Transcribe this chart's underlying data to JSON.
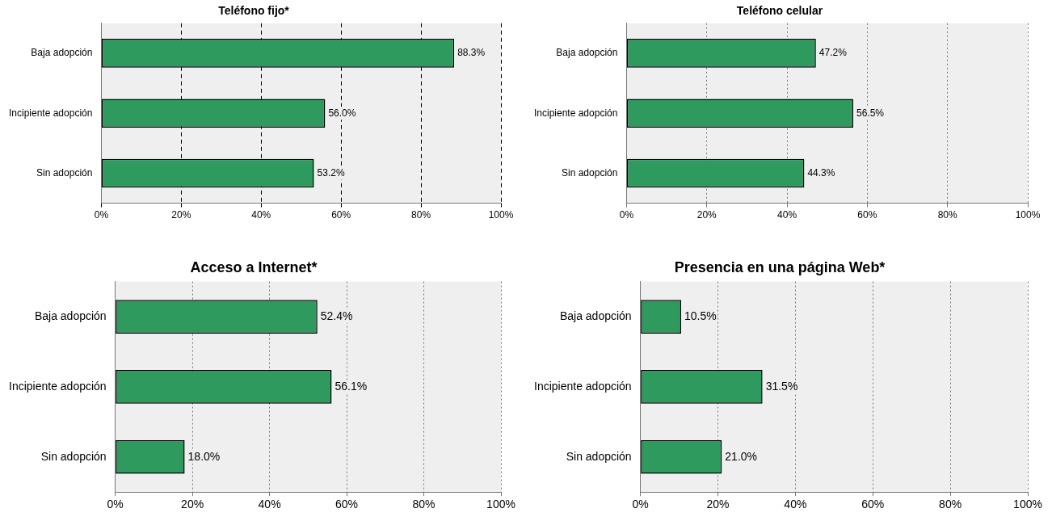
{
  "chart_data": [
    {
      "type": "bar",
      "orientation": "horizontal",
      "title": "Teléfono fijo*",
      "categories": [
        "Baja adopción",
        "Incipiente adopción",
        "Sin adopción"
      ],
      "values": [
        88.3,
        56.0,
        53.2
      ],
      "value_labels": [
        "88.3%",
        "56.0%",
        "53.2%"
      ],
      "color": "#2e9a5e",
      "xlim": [
        0,
        100
      ],
      "xticks": [
        {
          "value": 0,
          "label": "0%"
        },
        {
          "value": 20,
          "label": "20%"
        },
        {
          "value": 40,
          "label": "40%"
        },
        {
          "value": 60,
          "label": "60%"
        },
        {
          "value": 80,
          "label": "80%"
        },
        {
          "value": 100,
          "label": "100%"
        }
      ],
      "grid": "x",
      "legend": false
    },
    {
      "type": "bar",
      "orientation": "horizontal",
      "title": "Teléfono celular",
      "categories": [
        "Baja adopción",
        "Incipiente adopción",
        "Sin adopción"
      ],
      "values": [
        47.2,
        56.5,
        44.3
      ],
      "value_labels": [
        "47.2%",
        "56.5%",
        "44.3%"
      ],
      "color": "#2e9a5e",
      "xlim": [
        0,
        100
      ],
      "xticks": [
        {
          "value": 0,
          "label": "0%"
        },
        {
          "value": 20,
          "label": "20%"
        },
        {
          "value": 40,
          "label": "40%"
        },
        {
          "value": 60,
          "label": "60%"
        },
        {
          "value": 80,
          "label": "80%"
        },
        {
          "value": 100,
          "label": "100%"
        }
      ],
      "grid": "x",
      "legend": false
    },
    {
      "type": "bar",
      "orientation": "horizontal",
      "title": "Acceso a Internet*",
      "categories": [
        "Baja adopción",
        "Incipiente adopción",
        "Sin adopción"
      ],
      "values": [
        52.4,
        56.1,
        18.0
      ],
      "value_labels": [
        "52.4%",
        "56.1%",
        "18.0%"
      ],
      "color": "#2e9a5e",
      "xlim": [
        0,
        100
      ],
      "xticks": [
        {
          "value": 0,
          "label": "0%"
        },
        {
          "value": 20,
          "label": "20%"
        },
        {
          "value": 40,
          "label": "40%"
        },
        {
          "value": 60,
          "label": "60%"
        },
        {
          "value": 80,
          "label": "80%"
        },
        {
          "value": 100,
          "label": "100%"
        }
      ],
      "grid": "x",
      "legend": false
    },
    {
      "type": "bar",
      "orientation": "horizontal",
      "title": "Presencia en una página Web*",
      "categories": [
        "Baja adopción",
        "Incipiente adopción",
        "Sin adopción"
      ],
      "values": [
        10.5,
        31.5,
        21.0
      ],
      "value_labels": [
        "10.5%",
        "31.5%",
        "21.0%"
      ],
      "color": "#2e9a5e",
      "xlim": [
        0,
        100
      ],
      "xticks": [
        {
          "value": 0,
          "label": "0%"
        },
        {
          "value": 20,
          "label": "20%"
        },
        {
          "value": 40,
          "label": "40%"
        },
        {
          "value": 60,
          "label": "60%"
        },
        {
          "value": 80,
          "label": "80%"
        },
        {
          "value": 100,
          "label": "100%"
        }
      ],
      "grid": "x",
      "legend": false
    }
  ]
}
